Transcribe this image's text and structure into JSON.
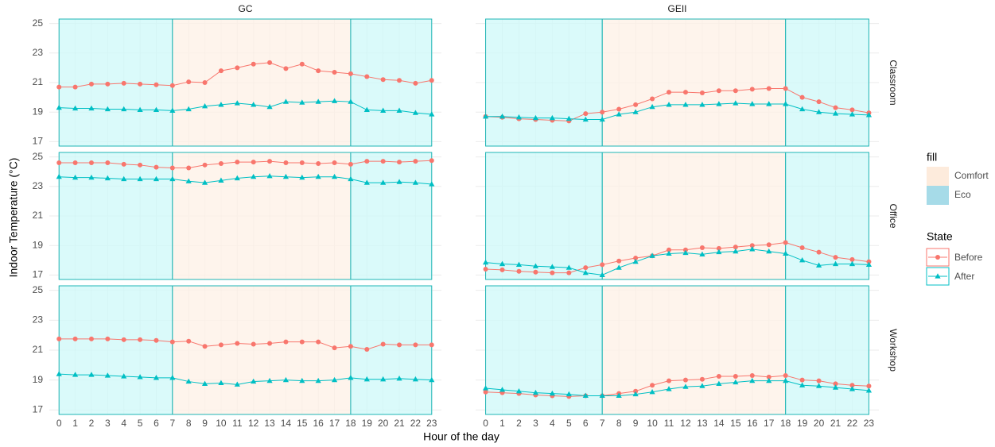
{
  "chart_data": {
    "type": "line",
    "x_label": "Hour of the day",
    "y_label": "Indoor Temperature (°C)",
    "x": [
      0,
      1,
      2,
      3,
      4,
      5,
      6,
      7,
      8,
      9,
      10,
      11,
      12,
      13,
      14,
      15,
      16,
      17,
      18,
      19,
      20,
      21,
      22,
      23
    ],
    "xlim": [
      -0.6,
      23.6
    ],
    "xticks": [
      0,
      1,
      2,
      3,
      4,
      5,
      6,
      7,
      8,
      9,
      10,
      11,
      12,
      13,
      14,
      15,
      16,
      17,
      18,
      19,
      20,
      21,
      22,
      23
    ],
    "ylim": [
      16.7,
      25.3
    ],
    "yticks": [
      17,
      19,
      21,
      23,
      25
    ],
    "grid": true,
    "columns": [
      "GC",
      "GEII"
    ],
    "rows": [
      "Classroom",
      "Office",
      "Workshop"
    ],
    "fill_legend": {
      "title": "fill",
      "entries": [
        {
          "name": "Comfort",
          "color": "#fdebdc"
        },
        {
          "name": "Eco",
          "color": "#a6dbe8"
        }
      ]
    },
    "regions": [
      {
        "from": 0,
        "to": 7,
        "fill": 1
      },
      {
        "from": 7,
        "to": 18,
        "fill": 0
      },
      {
        "from": 18,
        "to": 23,
        "fill": 1
      }
    ],
    "region_colors": [
      "#fdf0e6",
      "#cdf8f8"
    ],
    "region_border": "#1fb5b5",
    "state_legend": {
      "title": "State",
      "series": [
        {
          "name": "Before",
          "color": "#f8766d",
          "marker": "circle"
        },
        {
          "name": "After",
          "color": "#00bfc4",
          "marker": "triangle"
        }
      ]
    },
    "panels": [
      {
        "column": 0,
        "row": 0,
        "series": [
          {
            "values": [
              20.7,
              20.7,
              20.9,
              20.9,
              20.95,
              20.9,
              20.85,
              20.8,
              21.05,
              21.0,
              21.8,
              22.0,
              22.25,
              22.35,
              21.95,
              22.25,
              21.8,
              21.7,
              21.6,
              21.4,
              21.2,
              21.15,
              20.95,
              21.15
            ]
          },
          {
            "values": [
              19.3,
              19.25,
              19.25,
              19.2,
              19.2,
              19.15,
              19.15,
              19.1,
              19.2,
              19.4,
              19.5,
              19.6,
              19.5,
              19.35,
              19.7,
              19.65,
              19.7,
              19.75,
              19.7,
              19.15,
              19.1,
              19.1,
              18.95,
              18.85
            ]
          }
        ]
      },
      {
        "column": 1,
        "row": 0,
        "series": [
          {
            "values": [
              18.7,
              18.65,
              18.55,
              18.5,
              18.45,
              18.4,
              18.9,
              19.0,
              19.2,
              19.5,
              19.9,
              20.35,
              20.35,
              20.3,
              20.45,
              20.45,
              20.55,
              20.6,
              20.6,
              20.0,
              19.7,
              19.3,
              19.15,
              18.95
            ]
          },
          {
            "values": [
              18.7,
              18.7,
              18.65,
              18.6,
              18.6,
              18.55,
              18.5,
              18.5,
              18.85,
              19.0,
              19.35,
              19.5,
              19.5,
              19.5,
              19.55,
              19.6,
              19.55,
              19.55,
              19.55,
              19.2,
              19.0,
              18.9,
              18.85,
              18.8
            ]
          }
        ]
      },
      {
        "column": 0,
        "row": 1,
        "series": [
          {
            "values": [
              24.6,
              24.6,
              24.6,
              24.6,
              24.5,
              24.45,
              24.3,
              24.25,
              24.25,
              24.45,
              24.55,
              24.65,
              24.65,
              24.7,
              24.6,
              24.6,
              24.55,
              24.6,
              24.5,
              24.7,
              24.7,
              24.65,
              24.7,
              24.75
            ]
          },
          {
            "values": [
              23.65,
              23.6,
              23.6,
              23.55,
              23.5,
              23.5,
              23.5,
              23.5,
              23.35,
              23.25,
              23.4,
              23.55,
              23.65,
              23.7,
              23.65,
              23.6,
              23.65,
              23.65,
              23.5,
              23.25,
              23.25,
              23.3,
              23.25,
              23.15
            ]
          }
        ]
      },
      {
        "column": 1,
        "row": 1,
        "series": [
          {
            "values": [
              17.4,
              17.35,
              17.25,
              17.2,
              17.15,
              17.15,
              17.5,
              17.7,
              17.95,
              18.15,
              18.3,
              18.7,
              18.7,
              18.85,
              18.8,
              18.9,
              19.0,
              19.05,
              19.2,
              18.85,
              18.55,
              18.2,
              18.05,
              17.9
            ]
          },
          {
            "values": [
              17.85,
              17.75,
              17.7,
              17.6,
              17.55,
              17.5,
              17.15,
              17.0,
              17.5,
              17.9,
              18.3,
              18.45,
              18.5,
              18.4,
              18.55,
              18.6,
              18.75,
              18.6,
              18.45,
              18.0,
              17.65,
              17.75,
              17.75,
              17.7
            ]
          }
        ]
      },
      {
        "column": 0,
        "row": 2,
        "series": [
          {
            "values": [
              21.75,
              21.75,
              21.75,
              21.75,
              21.7,
              21.7,
              21.65,
              21.55,
              21.6,
              21.25,
              21.35,
              21.45,
              21.4,
              21.45,
              21.55,
              21.55,
              21.55,
              21.15,
              21.25,
              21.05,
              21.4,
              21.35,
              21.35,
              21.35
            ]
          },
          {
            "values": [
              19.4,
              19.35,
              19.35,
              19.3,
              19.25,
              19.2,
              19.15,
              19.15,
              18.9,
              18.75,
              18.8,
              18.7,
              18.9,
              18.95,
              19.0,
              18.95,
              18.95,
              19.0,
              19.15,
              19.05,
              19.05,
              19.1,
              19.05,
              19.0
            ]
          }
        ]
      },
      {
        "column": 1,
        "row": 2,
        "series": [
          {
            "values": [
              18.2,
              18.15,
              18.1,
              18.0,
              17.95,
              17.9,
              17.95,
              17.95,
              18.1,
              18.25,
              18.65,
              18.95,
              19.0,
              19.05,
              19.25,
              19.25,
              19.3,
              19.2,
              19.3,
              19.0,
              18.95,
              18.75,
              18.65,
              18.6
            ]
          },
          {
            "values": [
              18.45,
              18.35,
              18.25,
              18.15,
              18.1,
              18.05,
              17.95,
              17.95,
              17.95,
              18.05,
              18.2,
              18.4,
              18.55,
              18.6,
              18.75,
              18.85,
              18.95,
              18.95,
              18.95,
              18.65,
              18.6,
              18.5,
              18.4,
              18.3
            ]
          }
        ]
      }
    ]
  }
}
